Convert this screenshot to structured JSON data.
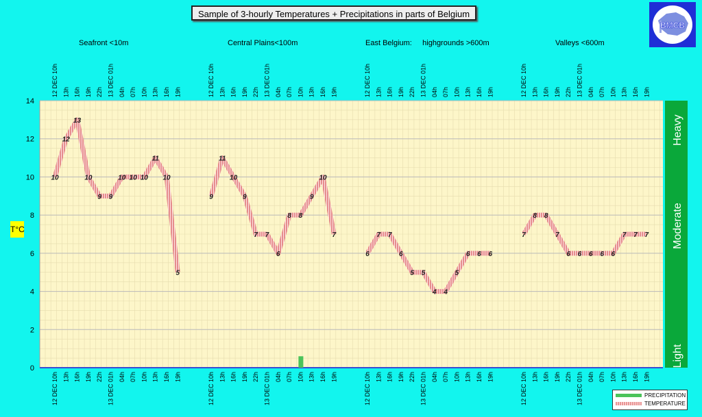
{
  "title": "Sample of 3-hourly Temperatures + Precipitations in parts of Belgium",
  "logo_text": "BMCB",
  "ylabel": "T°C",
  "legend": {
    "precipitation": "PRECIPITATION",
    "temperature": "TEMPERATURE"
  },
  "rain_scale": [
    "Heavy",
    "Moderate",
    "Light"
  ],
  "colors": {
    "background": "#12f5ee",
    "plot_bg": "#fdf6c9",
    "temperature_line": "#e89494",
    "precipitation_bar": "#4bc35a",
    "rain_scale_bar": "#0aa83a"
  },
  "chart_data": {
    "type": "line",
    "ylim": [
      0,
      14
    ],
    "yticks": [
      0,
      2,
      4,
      6,
      8,
      10,
      12,
      14
    ],
    "grid": true,
    "legend_position": "bottom-right",
    "time_labels": [
      "12 DEC 10h",
      "13h",
      "16h",
      "19h",
      "22h",
      "13 DEC 01h",
      "04h",
      "07h",
      "10h",
      "13h",
      "16h",
      "19h"
    ],
    "regions": [
      {
        "label": "Seafront <10m",
        "temperature": [
          10,
          12,
          13,
          10,
          9,
          9,
          10,
          10,
          10,
          11,
          10,
          5
        ],
        "precipitation": [
          0,
          0,
          0,
          0,
          0,
          0,
          0,
          0,
          0,
          0,
          0,
          0
        ]
      },
      {
        "label": "Central Plains<100m",
        "temperature": [
          9,
          11,
          10,
          9,
          7,
          7,
          6,
          8,
          8,
          9,
          10,
          7
        ],
        "precipitation": [
          0,
          0,
          0,
          0,
          0,
          0,
          0,
          0,
          0.6,
          0,
          0,
          0
        ]
      },
      {
        "label": "East Belgium:     highgrounds >600m",
        "temperature": [
          6,
          7,
          7,
          6,
          5,
          5,
          4,
          4,
          5,
          6,
          6,
          6
        ],
        "precipitation": [
          0,
          0,
          0,
          0,
          0,
          0,
          0,
          0,
          0,
          0,
          0,
          0
        ]
      },
      {
        "label": "Valleys <600m",
        "temperature": [
          7,
          8,
          8,
          7,
          6,
          6,
          6,
          6,
          6,
          7,
          7,
          7
        ],
        "precipitation": [
          0,
          0,
          0,
          0,
          0,
          0,
          0,
          0,
          0,
          0,
          0,
          0
        ]
      }
    ]
  }
}
